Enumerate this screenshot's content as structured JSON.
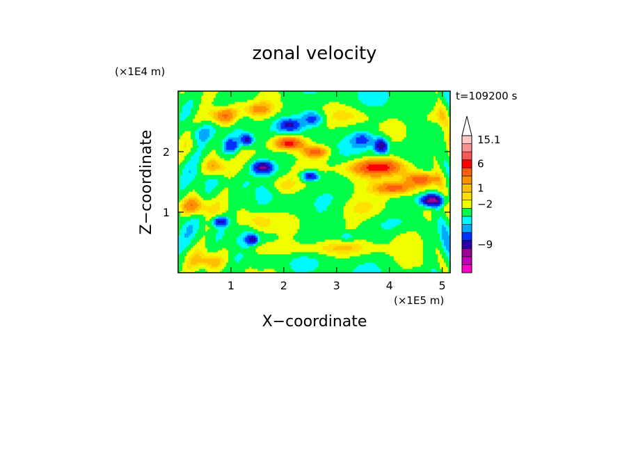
{
  "chart_data": {
    "type": "heatmap",
    "title": "zonal velocity",
    "xlabel": "X−coordinate",
    "ylabel": "Z−coordinate",
    "x_unit": "(×1E5 m)",
    "y_unit": "(×1E4 m)",
    "time_label": "t=109200 s",
    "xlim": [
      0,
      5.15
    ],
    "ylim": [
      0,
      3.0
    ],
    "x_ticks": [
      {
        "value": 1,
        "label": "1"
      },
      {
        "value": 2,
        "label": "2"
      },
      {
        "value": 3,
        "label": "3"
      },
      {
        "value": 4,
        "label": "4"
      },
      {
        "value": 5,
        "label": "5"
      }
    ],
    "y_ticks": [
      {
        "value": 1,
        "label": "1"
      },
      {
        "value": 2,
        "label": "2"
      }
    ],
    "colorbar": {
      "colors": [
        "#ff00c8",
        "#c000b4",
        "#9c0096",
        "#2800a8",
        "#0030ff",
        "#00a8ff",
        "#00f8ff",
        "#00ff48",
        "#f0ff00",
        "#ffe000",
        "#ffc000",
        "#ff9000",
        "#ff6010",
        "#ff0000",
        "#ff5858",
        "#ff9090",
        "#ffc8c8"
      ],
      "labels": [
        {
          "label": "15.1",
          "level": 16
        },
        {
          "label": "6",
          "level": 13
        },
        {
          "label": "1",
          "level": 10
        },
        {
          "label": "−2",
          "level": 8
        },
        {
          "label": "−9",
          "level": 3
        }
      ]
    },
    "field_features": [
      {
        "x": 0.85,
        "z": 2.6,
        "sx": 0.3,
        "sz": 0.15,
        "v": 7
      },
      {
        "x": 0.7,
        "z": 1.75,
        "sx": 0.25,
        "sz": 0.15,
        "v": 5
      },
      {
        "x": 1.0,
        "z": 2.1,
        "sx": 0.15,
        "sz": 0.12,
        "v": -6
      },
      {
        "x": 1.3,
        "z": 2.2,
        "sx": 0.12,
        "sz": 0.1,
        "v": -8
      },
      {
        "x": 1.6,
        "z": 1.75,
        "sx": 0.18,
        "sz": 0.1,
        "v": -10
      },
      {
        "x": 2.1,
        "z": 2.15,
        "sx": 0.3,
        "sz": 0.12,
        "v": 9
      },
      {
        "x": 2.6,
        "z": 2.0,
        "sx": 0.25,
        "sz": 0.1,
        "v": 6
      },
      {
        "x": 2.0,
        "z": 1.45,
        "sx": 0.3,
        "sz": 0.15,
        "v": 3
      },
      {
        "x": 2.5,
        "z": 1.6,
        "sx": 0.15,
        "sz": 0.08,
        "v": -8
      },
      {
        "x": 2.55,
        "z": 2.55,
        "sx": 0.2,
        "sz": 0.12,
        "v": -5
      },
      {
        "x": 2.1,
        "z": 2.45,
        "sx": 0.2,
        "sz": 0.1,
        "v": -6
      },
      {
        "x": 3.5,
        "z": 2.2,
        "sx": 0.2,
        "sz": 0.12,
        "v": -4
      },
      {
        "x": 3.85,
        "z": 2.1,
        "sx": 0.12,
        "sz": 0.12,
        "v": -9
      },
      {
        "x": 3.8,
        "z": 1.75,
        "sx": 0.6,
        "sz": 0.15,
        "v": 8
      },
      {
        "x": 4.1,
        "z": 1.4,
        "sx": 0.35,
        "sz": 0.1,
        "v": 6
      },
      {
        "x": 4.6,
        "z": 1.55,
        "sx": 0.35,
        "sz": 0.12,
        "v": 7
      },
      {
        "x": 4.8,
        "z": 1.2,
        "sx": 0.22,
        "sz": 0.1,
        "v": -12
      },
      {
        "x": 3.5,
        "z": 1.05,
        "sx": 0.6,
        "sz": 0.2,
        "v": 2.5
      },
      {
        "x": 4.3,
        "z": 0.6,
        "sx": 0.4,
        "sz": 0.15,
        "v": 1.5
      },
      {
        "x": 2.5,
        "z": 0.4,
        "sx": 1.5,
        "sz": 0.12,
        "v": 2.5
      },
      {
        "x": 1.5,
        "z": 0.85,
        "sx": 0.25,
        "sz": 0.15,
        "v": 3
      },
      {
        "x": 1.4,
        "z": 0.55,
        "sx": 0.1,
        "sz": 0.08,
        "v": -8
      },
      {
        "x": 0.8,
        "z": 0.85,
        "sx": 0.15,
        "sz": 0.08,
        "v": -7
      },
      {
        "x": 3.3,
        "z": 2.6,
        "sx": 0.4,
        "sz": 0.15,
        "v": 2
      },
      {
        "x": 1.5,
        "z": 2.7,
        "sx": 0.3,
        "sz": 0.12,
        "v": 4
      },
      {
        "x": 3.2,
        "z": 0.6,
        "sx": 0.2,
        "sz": 0.08,
        "v": -3
      },
      {
        "x": 4.9,
        "z": 2.6,
        "sx": 0.25,
        "sz": 0.2,
        "v": 4
      },
      {
        "x": 0.4,
        "z": 2.3,
        "sx": 0.2,
        "sz": 0.15,
        "v": -3
      },
      {
        "x": 0.3,
        "z": 1.1,
        "sx": 0.25,
        "sz": 0.15,
        "v": 5
      },
      {
        "x": 0.6,
        "z": 0.2,
        "sx": 0.3,
        "sz": 0.12,
        "v": 3
      }
    ]
  }
}
